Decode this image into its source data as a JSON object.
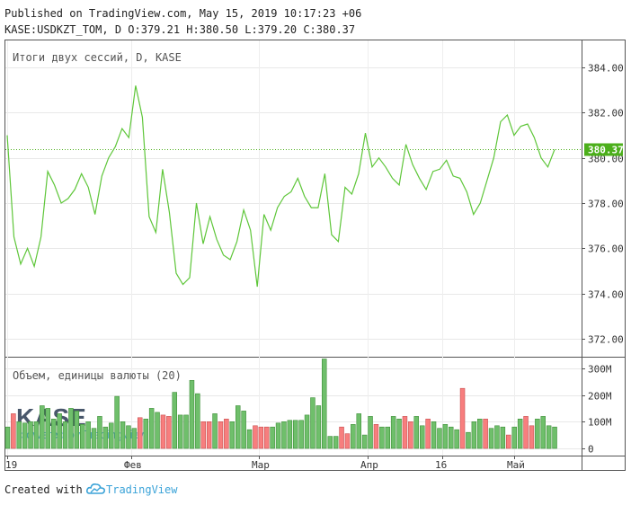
{
  "header": {
    "published": "Published on TradingView.com, May 15, 2019 10:17:23 +06",
    "ohlc": "KASE:USDKZT_TOM, D O:379.21 H:380.50 L:379.20 C:380.37"
  },
  "price_pane": {
    "legend": "Итоги двух сессий, D, KASE",
    "last_label": "380.37",
    "y_ticks": [
      "384.00",
      "382.00",
      "380.00",
      "378.00",
      "376.00",
      "374.00",
      "372.00"
    ]
  },
  "volume_pane": {
    "legend": "Объем, единицы валюты (20)",
    "y_ticks": [
      "300M",
      "200M",
      "100M",
      "0"
    ]
  },
  "x_ticks": [
    "19",
    "Фев",
    "Мар",
    "Апр",
    "16",
    "Май"
  ],
  "watermark": {
    "logo_text": "KASE",
    "powered": "powered by TradingView"
  },
  "footer": {
    "created_with": "Created with",
    "brand": "TradingView"
  },
  "colors": {
    "line": "#5ec639",
    "up_volume": "#6fbf6b",
    "down_volume": "#f77e7e",
    "last_price_bg": "#4caf1b",
    "brand": "#3ba3d8"
  },
  "chart_data": [
    {
      "type": "line",
      "title": "Итоги двух сессий, D, KASE",
      "x_ticks": [
        "19",
        "Фев",
        "Мар",
        "Апр",
        "16",
        "Май"
      ],
      "ylim": [
        371.2,
        385.2
      ],
      "last": 380.37,
      "values": [
        381.0,
        376.5,
        375.3,
        376.0,
        375.2,
        376.5,
        379.4,
        378.8,
        378.0,
        378.2,
        378.6,
        379.3,
        378.7,
        377.5,
        379.2,
        380.0,
        380.5,
        381.3,
        380.9,
        383.2,
        381.8,
        377.4,
        376.7,
        379.5,
        377.6,
        374.9,
        374.4,
        374.7,
        378.0,
        376.2,
        377.4,
        376.4,
        375.7,
        375.5,
        376.3,
        377.7,
        376.8,
        374.3,
        377.5,
        376.8,
        377.8,
        378.3,
        378.5,
        379.1,
        378.3,
        377.8,
        377.8,
        379.3,
        376.6,
        376.3,
        378.7,
        378.4,
        379.3,
        381.1,
        379.6,
        380.0,
        379.6,
        379.1,
        378.8,
        380.6,
        379.7,
        379.1,
        378.6,
        379.4,
        379.5,
        379.9,
        379.2,
        379.1,
        378.5,
        377.5,
        378.0,
        379.0,
        380.0,
        381.6,
        381.9,
        381.0,
        381.4,
        381.5,
        380.9,
        380.0,
        379.6,
        380.37
      ]
    },
    {
      "type": "bar",
      "title": "Объем, единицы валюты (20)",
      "ylim": [
        0,
        340
      ],
      "unit": "M",
      "values": [
        80,
        130,
        100,
        95,
        100,
        100,
        160,
        150,
        110,
        130,
        100,
        150,
        140,
        90,
        100,
        75,
        120,
        80,
        95,
        195,
        100,
        85,
        75,
        115,
        110,
        150,
        135,
        125,
        120,
        210,
        125,
        125,
        255,
        205,
        100,
        100,
        130,
        100,
        110,
        100,
        160,
        140,
        70,
        85,
        80,
        80,
        80,
        95,
        100,
        105,
        105,
        105,
        125,
        190,
        160,
        335,
        45,
        45,
        80,
        55,
        90,
        130,
        50,
        120,
        90,
        80,
        80,
        120,
        110,
        120,
        100,
        120,
        85,
        110,
        100,
        75,
        90,
        80,
        70,
        225,
        60,
        100,
        110,
        110,
        75,
        85,
        80,
        50,
        80,
        110,
        120,
        85,
        110,
        120,
        85,
        80
      ],
      "down": [
        0,
        1,
        0,
        0,
        0,
        0,
        0,
        0,
        0,
        0,
        0,
        0,
        0,
        0,
        0,
        0,
        0,
        0,
        0,
        0,
        0,
        0,
        0,
        1,
        0,
        0,
        0,
        1,
        1,
        0,
        0,
        0,
        0,
        0,
        1,
        1,
        0,
        1,
        1,
        0,
        0,
        0,
        0,
        1,
        1,
        1,
        0,
        0,
        0,
        0,
        0,
        0,
        0,
        0,
        0,
        0,
        0,
        0,
        1,
        1,
        0,
        0,
        0,
        0,
        1,
        0,
        0,
        0,
        0,
        1,
        1,
        0,
        0,
        1,
        0,
        0,
        0,
        0,
        0,
        1,
        0,
        0,
        0,
        1,
        0,
        0,
        0,
        1,
        0,
        0,
        1,
        1,
        0,
        0,
        0,
        0
      ]
    }
  ]
}
